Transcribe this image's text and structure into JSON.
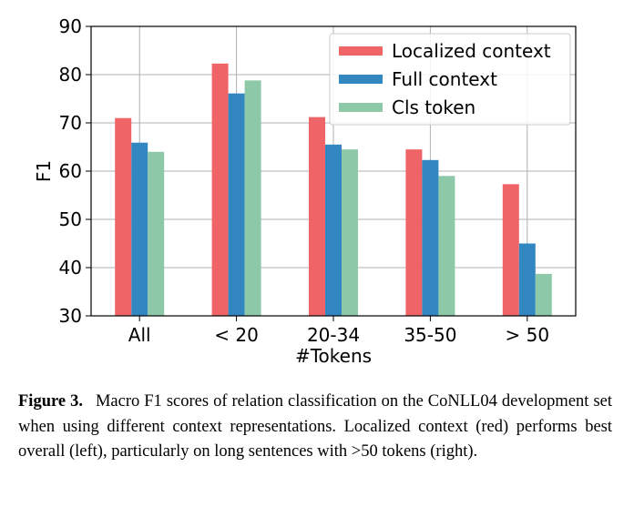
{
  "chart_data": {
    "type": "bar",
    "categories": [
      "All",
      "< 20",
      "20-34",
      "35-50",
      "> 50"
    ],
    "series": [
      {
        "name": "Localized context",
        "values": [
          71.0,
          82.3,
          71.2,
          64.5,
          57.3
        ],
        "color": "#ef6466"
      },
      {
        "name": "Full context",
        "values": [
          65.9,
          76.1,
          65.5,
          62.3,
          45.0
        ],
        "color": "#3387c1"
      },
      {
        "name": "Cls token",
        "values": [
          64.0,
          78.8,
          64.5,
          59.0,
          38.7
        ],
        "color": "#8dc9a8"
      }
    ],
    "xlabel": "#Tokens",
    "ylabel": "F1",
    "ylim": [
      30,
      90
    ],
    "yticks": [
      "30",
      "40",
      "50",
      "60",
      "70",
      "80",
      "90"
    ],
    "grid": true,
    "legend_position": "top-right"
  },
  "caption": {
    "label": "Figure 3.",
    "text": "Macro F1 scores of relation classification on the CoNLL04 development set when using different context representations. Localized context (red) performs best overall (left), particularly on long sentences with >50 tokens (right)."
  }
}
